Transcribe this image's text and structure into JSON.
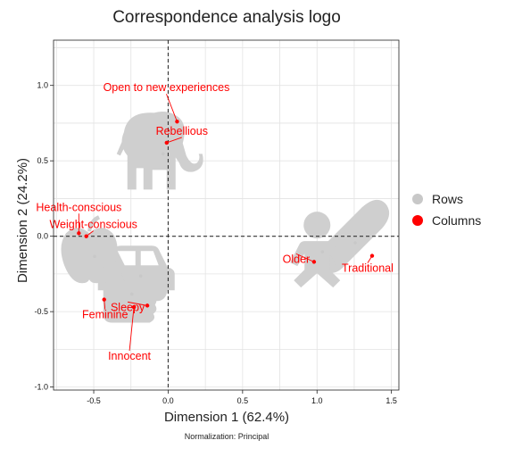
{
  "chart_data": {
    "type": "scatter",
    "title": "Correspondence analysis logo",
    "xlabel": "Dimension 1 (62.4%)",
    "ylabel": "Dimension 2 (24.2%)",
    "note": "Normalization: Principal",
    "xlim": [
      -0.77,
      1.55
    ],
    "ylim": [
      -1.02,
      1.3
    ],
    "xticks": [
      -0.5,
      0.0,
      0.5,
      1.0,
      1.5
    ],
    "xtick_labels": [
      "-0.5",
      "0.0",
      "0.5",
      "1.0",
      "1.5"
    ],
    "yticks": [
      -1.0,
      -0.5,
      0.0,
      0.5,
      1.0
    ],
    "ytick_labels": [
      "-1.0",
      "-0.5",
      "0.0",
      "0.5",
      "1.0"
    ],
    "grid": true,
    "legend_position": "right",
    "series": [
      {
        "name": "Rows",
        "color": "#c8c8c8",
        "points": [
          {
            "label": "elephant",
            "icon": "elephant-icon",
            "x": -0.07,
            "y": 0.57
          },
          {
            "label": "bread",
            "icon": "bread-icon",
            "x": 1.22,
            "y": -0.02
          },
          {
            "label": "apple",
            "icon": "apple-icon",
            "x": -0.53,
            "y": -0.11
          },
          {
            "label": "car",
            "icon": "car-icon",
            "x": -0.22,
            "y": -0.24
          },
          {
            "label": "thumbs up",
            "icon": "thumbs-up-icon",
            "x": -0.28,
            "y": -0.36
          },
          {
            "label": "baby",
            "icon": "baby-icon",
            "x": 1.0,
            "y": -0.08
          }
        ]
      },
      {
        "name": "Columns",
        "color": "#ff0000",
        "points": [
          {
            "label": "Open to new experiences",
            "x": 0.06,
            "y": 0.76
          },
          {
            "label": "Rebellious",
            "x": -0.01,
            "y": 0.62
          },
          {
            "label": "Health-conscious",
            "x": -0.6,
            "y": 0.02
          },
          {
            "label": "Weight-conscious",
            "x": -0.55,
            "y": 0.0
          },
          {
            "label": "Older",
            "x": 0.98,
            "y": -0.17
          },
          {
            "label": "Traditional",
            "x": 1.37,
            "y": -0.13
          },
          {
            "label": "Sleepy",
            "x": -0.14,
            "y": -0.46
          },
          {
            "label": "Feminine",
            "x": -0.43,
            "y": -0.42
          },
          {
            "label": "Innocent",
            "x": -0.23,
            "y": -0.47
          }
        ]
      }
    ]
  }
}
